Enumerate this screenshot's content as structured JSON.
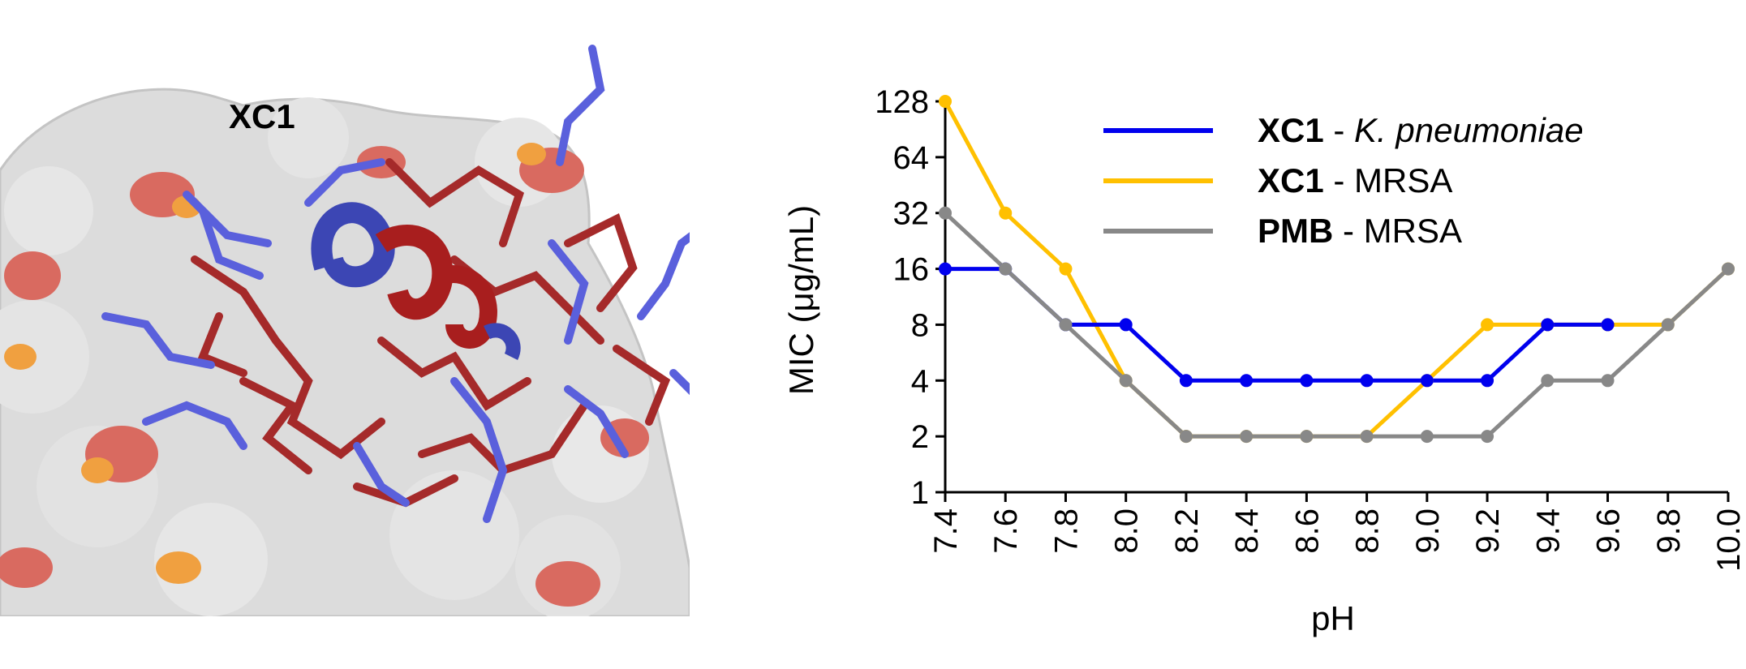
{
  "structure_panel": {
    "label": "XC1",
    "colors": {
      "surface": "#dcdcdc",
      "surface_red": "#d96a60",
      "surface_orange": "#f0a040",
      "helix_blue": "#3c46b4",
      "helix_red": "#a81e1e",
      "sticks_blue": "#5a60dc",
      "sticks_red": "#a52a2a"
    }
  },
  "chart_data": {
    "type": "line",
    "xlabel": "pH",
    "ylabel": "MIC (μg/mL)",
    "x": [
      7.4,
      7.6,
      7.8,
      8.0,
      8.2,
      8.4,
      8.6,
      8.8,
      9.0,
      9.2,
      9.4,
      9.6,
      9.8,
      10.0
    ],
    "x_tick_labels": [
      "7.4",
      "7.6",
      "7.8",
      "8.0",
      "8.2",
      "8.4",
      "8.6",
      "8.8",
      "9.0",
      "9.2",
      "9.4",
      "9.6",
      "9.8",
      "10.0"
    ],
    "y_scale": "log2",
    "y_ticks": [
      1,
      2,
      4,
      8,
      16,
      32,
      64,
      128
    ],
    "y_tick_labels": [
      "1",
      "2",
      "4",
      "8",
      "16",
      "32",
      "64",
      "128"
    ],
    "xlim": [
      7.4,
      10.0
    ],
    "ylim": [
      1,
      128
    ],
    "grid": false,
    "legend_position": "top-right",
    "series": [
      {
        "name_bold": "XC1",
        "name_sep": " - ",
        "name_rest": "K. pneumoniae",
        "name_rest_italic": true,
        "color": "#0000ee",
        "x": [
          7.4,
          7.6,
          7.8,
          8.0,
          8.2,
          8.4,
          8.6,
          8.8,
          9.0,
          9.2,
          9.4,
          9.6
        ],
        "values": [
          16,
          16,
          8,
          8,
          4,
          4,
          4,
          4,
          4,
          4,
          8,
          8
        ]
      },
      {
        "name_bold": "XC1",
        "name_sep": " - ",
        "name_rest": "MRSA",
        "name_rest_italic": false,
        "color": "#ffc000",
        "x": [
          7.4,
          7.6,
          7.8,
          8.0,
          8.2,
          8.4,
          8.6,
          8.8,
          9.0,
          9.2,
          9.4,
          9.6,
          9.8,
          10.0
        ],
        "values": [
          128,
          32,
          16,
          4,
          2,
          2,
          2,
          2,
          4,
          8,
          8,
          8,
          8,
          16
        ]
      },
      {
        "name_bold": "PMB",
        "name_sep": " - ",
        "name_rest": "MRSA",
        "name_rest_italic": false,
        "color": "#888888",
        "x": [
          7.4,
          7.6,
          7.8,
          8.0,
          8.2,
          8.4,
          8.6,
          8.8,
          9.0,
          9.2,
          9.4,
          9.6,
          9.8,
          10.0
        ],
        "values": [
          32,
          16,
          8,
          4,
          2,
          2,
          2,
          2,
          2,
          2,
          4,
          4,
          8,
          16
        ]
      }
    ]
  }
}
